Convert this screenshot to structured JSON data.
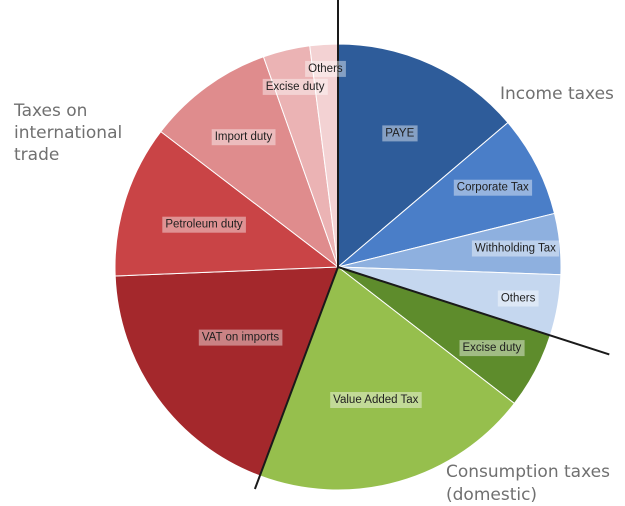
{
  "chart_data": {
    "type": "pie",
    "title": "",
    "slices": [
      {
        "label": "PAYE",
        "value": 15.0,
        "group": "Income taxes",
        "color": "#2E5C9A"
      },
      {
        "label": "Corporate Tax",
        "value": 8.0,
        "group": "Income taxes",
        "color": "#4A7EC8"
      },
      {
        "label": "Withholding Tax",
        "value": 4.8,
        "group": "Income taxes",
        "color": "#8EB0DF"
      },
      {
        "label": "Others",
        "value": 4.8,
        "group": "Income taxes",
        "color": "#C5D7EF"
      },
      {
        "label": "Excise duty",
        "value": 6.0,
        "group": "Consumption taxes (domestic)",
        "color": "#5E8C2C"
      },
      {
        "label": "Value Added Tax",
        "value": 22.0,
        "group": "Consumption taxes (domestic)",
        "color": "#96BF4D"
      },
      {
        "label": "VAT on imports",
        "value": 20.3,
        "group": "Taxes on international trade",
        "color": "#A4282C"
      },
      {
        "label": "Petroleum duty",
        "value": 12.0,
        "group": "Taxes on international trade",
        "color": "#C94446"
      },
      {
        "label": "Import duty",
        "value": 10.0,
        "group": "Taxes on international trade",
        "color": "#DF8C8D"
      },
      {
        "label": "Excise duty",
        "value": 3.7,
        "group": "Taxes on international trade",
        "color": "#EBB3B4"
      },
      {
        "label": "Others",
        "value": 2.2,
        "group": "Taxes on international trade",
        "color": "#F3D2D3"
      }
    ],
    "groups": [
      {
        "name": "Income taxes"
      },
      {
        "name": "Consumption taxes (domestic)"
      },
      {
        "name": "Taxes on international trade"
      }
    ]
  },
  "labels": {
    "international": "Taxes on international trade",
    "income": "Income taxes",
    "consumption_line1": "Consumption taxes",
    "consumption_line2": "(domestic)"
  }
}
